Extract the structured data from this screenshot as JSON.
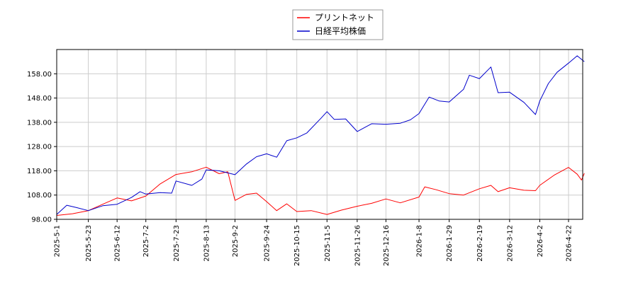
{
  "chart_data": {
    "type": "line",
    "title": "",
    "xlabel": "",
    "ylabel": "",
    "ylim": [
      98.0,
      168.0
    ],
    "y_ticks": [
      "98.00",
      "108.00",
      "118.00",
      "128.00",
      "138.00",
      "148.00",
      "158.00"
    ],
    "x_ticks": [
      "2025-5-1",
      "2025-5-23",
      "2025-6-12",
      "2025-7-2",
      "2025-7-23",
      "2025-8-13",
      "2025-9-2",
      "2025-9-24",
      "2025-10-15",
      "2025-11-5",
      "2025-11-26",
      "2025-12-16",
      "2026-1-8",
      "2026-1-29",
      "2026-2-19",
      "2026-3-12",
      "2026-4-2",
      "2026-4-22"
    ],
    "grid": true,
    "legend_position": "top-center",
    "series": [
      {
        "name": "プリントネット",
        "color": "#ff0000",
        "points": [
          [
            "2025-05-01",
            99.6
          ],
          [
            "2025-05-12",
            100.3
          ],
          [
            "2025-05-23",
            101.6
          ],
          [
            "2025-06-02",
            104.2
          ],
          [
            "2025-06-12",
            106.8
          ],
          [
            "2025-06-22",
            105.6
          ],
          [
            "2025-07-02",
            107.6
          ],
          [
            "2025-07-12",
            112.6
          ],
          [
            "2025-07-23",
            116.5
          ],
          [
            "2025-08-03",
            117.6
          ],
          [
            "2025-08-13",
            119.5
          ],
          [
            "2025-08-22",
            116.8
          ],
          [
            "2025-08-28",
            117.6
          ],
          [
            "2025-09-02",
            105.8
          ],
          [
            "2025-09-10",
            108.3
          ],
          [
            "2025-09-17",
            108.8
          ],
          [
            "2025-09-24",
            105.3
          ],
          [
            "2025-10-01",
            101.6
          ],
          [
            "2025-10-08",
            104.4
          ],
          [
            "2025-10-15",
            101.2
          ],
          [
            "2025-10-25",
            101.6
          ],
          [
            "2025-11-05",
            100.0
          ],
          [
            "2025-11-15",
            101.8
          ],
          [
            "2025-11-26",
            103.4
          ],
          [
            "2025-12-06",
            104.6
          ],
          [
            "2025-12-16",
            106.4
          ],
          [
            "2025-12-26",
            104.8
          ],
          [
            "2026-01-08",
            107.2
          ],
          [
            "2026-01-12",
            111.4
          ],
          [
            "2026-01-20",
            110.2
          ],
          [
            "2026-01-29",
            108.6
          ],
          [
            "2026-02-08",
            108.0
          ],
          [
            "2026-02-19",
            110.6
          ],
          [
            "2026-02-27",
            112.0
          ],
          [
            "2026-03-04",
            109.4
          ],
          [
            "2026-03-12",
            111.0
          ],
          [
            "2026-03-22",
            110.0
          ],
          [
            "2026-03-30",
            109.8
          ],
          [
            "2026-04-02",
            112.0
          ],
          [
            "2026-04-12",
            116.2
          ],
          [
            "2026-04-22",
            119.4
          ],
          [
            "2026-04-28",
            116.6
          ],
          [
            "2026-05-01",
            114.2
          ],
          [
            "2026-05-03",
            117.0
          ]
        ]
      },
      {
        "name": "日経平均株価",
        "color": "#0000cc",
        "points": [
          [
            "2025-05-01",
            100.0
          ],
          [
            "2025-05-08",
            103.8
          ],
          [
            "2025-05-15",
            102.8
          ],
          [
            "2025-05-23",
            101.6
          ],
          [
            "2025-06-02",
            103.6
          ],
          [
            "2025-06-12",
            104.2
          ],
          [
            "2025-06-22",
            107.0
          ],
          [
            "2025-06-28",
            109.4
          ],
          [
            "2025-07-02",
            108.4
          ],
          [
            "2025-07-12",
            109.0
          ],
          [
            "2025-07-20",
            108.8
          ],
          [
            "2025-07-23",
            113.8
          ],
          [
            "2025-08-03",
            112.0
          ],
          [
            "2025-08-10",
            114.6
          ],
          [
            "2025-08-13",
            118.4
          ],
          [
            "2025-08-22",
            118.0
          ],
          [
            "2025-09-02",
            116.4
          ],
          [
            "2025-09-10",
            120.8
          ],
          [
            "2025-09-17",
            123.8
          ],
          [
            "2025-09-24",
            125.0
          ],
          [
            "2025-10-01",
            123.6
          ],
          [
            "2025-10-08",
            130.4
          ],
          [
            "2025-10-15",
            131.6
          ],
          [
            "2025-10-22",
            133.6
          ],
          [
            "2025-11-01",
            139.8
          ],
          [
            "2025-11-05",
            142.4
          ],
          [
            "2025-11-10",
            139.2
          ],
          [
            "2025-11-18",
            139.4
          ],
          [
            "2025-11-26",
            134.2
          ],
          [
            "2025-12-06",
            137.4
          ],
          [
            "2025-12-16",
            137.2
          ],
          [
            "2025-12-26",
            137.6
          ],
          [
            "2026-01-02",
            139.0
          ],
          [
            "2026-01-08",
            141.6
          ],
          [
            "2026-01-15",
            148.4
          ],
          [
            "2026-01-22",
            146.8
          ],
          [
            "2026-01-29",
            146.4
          ],
          [
            "2026-02-08",
            151.6
          ],
          [
            "2026-02-12",
            157.4
          ],
          [
            "2026-02-19",
            156.0
          ],
          [
            "2026-02-27",
            160.8
          ],
          [
            "2026-03-04",
            150.2
          ],
          [
            "2026-03-12",
            150.4
          ],
          [
            "2026-03-22",
            146.2
          ],
          [
            "2026-03-30",
            141.2
          ],
          [
            "2026-04-02",
            146.8
          ],
          [
            "2026-04-08",
            154.0
          ],
          [
            "2026-04-14",
            158.6
          ],
          [
            "2026-04-22",
            162.4
          ],
          [
            "2026-04-28",
            165.4
          ],
          [
            "2026-05-03",
            163.0
          ]
        ]
      }
    ]
  }
}
